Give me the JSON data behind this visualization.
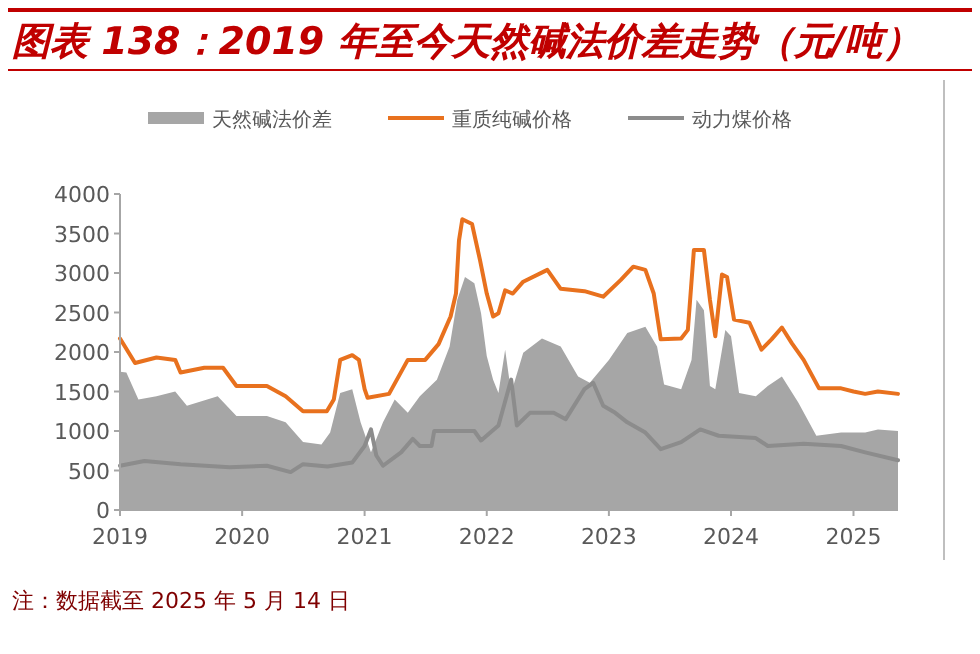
{
  "chart_data": {
    "type": "line",
    "title": "图表 138：2019 年至今天然碱法价差走势（元/吨）",
    "annotations": [
      "注：数据截至 2025 年 5 月 14 日"
    ],
    "legend": "top",
    "xlim": [
      "2019-01-01",
      "2025-05-14"
    ],
    "xticks": [
      {
        "value": "2019-01-01",
        "label": "2019"
      },
      {
        "value": "2020-01-01",
        "label": "2020"
      },
      {
        "value": "2021-01-01",
        "label": "2021"
      },
      {
        "value": "2022-01-01",
        "label": "2022"
      },
      {
        "value": "2023-01-01",
        "label": "2023"
      },
      {
        "value": "2024-01-01",
        "label": "2024"
      },
      {
        "value": "2025-01-01",
        "label": "2025"
      }
    ],
    "ylim": [
      0,
      4000
    ],
    "yticks": [
      0,
      500,
      1000,
      1500,
      2000,
      2500,
      3000,
      3500,
      4000
    ],
    "series": [
      {
        "name": "天然碱法价差",
        "type": "area",
        "color": "#a6a6a6",
        "x": [
          "2019-01-01",
          "2019-01-20",
          "2019-02-25",
          "2019-04-20",
          "2019-06-15",
          "2019-07-20",
          "2019-10-20",
          "2019-12-15",
          "2020-03-15",
          "2020-05-10",
          "2020-07-01",
          "2020-08-25",
          "2020-09-20",
          "2020-10-20",
          "2020-11-25",
          "2020-12-20",
          "2021-01-20",
          "2021-02-25",
          "2021-04-01",
          "2021-05-10",
          "2021-06-15",
          "2021-08-05",
          "2021-09-12",
          "2021-10-05",
          "2021-10-28",
          "2021-11-25",
          "2021-12-15",
          "2022-01-01",
          "2022-01-20",
          "2022-02-05",
          "2022-02-25",
          "2022-03-15",
          "2022-04-20",
          "2022-06-15",
          "2022-08-10",
          "2022-10-01",
          "2022-11-05",
          "2023-01-01",
          "2023-02-25",
          "2023-04-20",
          "2023-05-25",
          "2023-06-15",
          "2023-08-05",
          "2023-09-05",
          "2023-09-20",
          "2023-10-12",
          "2023-10-30",
          "2023-11-15",
          "2023-12-15",
          "2024-01-01",
          "2024-01-25",
          "2024-03-15",
          "2024-04-20",
          "2024-06-01",
          "2024-07-20",
          "2024-09-12",
          "2024-11-25",
          "2025-02-05",
          "2025-03-15",
          "2025-05-14"
        ],
        "values": [
          1750,
          1740,
          1400,
          1440,
          1500,
          1320,
          1440,
          1190,
          1190,
          1110,
          860,
          830,
          980,
          1480,
          1530,
          1110,
          730,
          1110,
          1400,
          1230,
          1440,
          1650,
          2070,
          2660,
          2950,
          2870,
          2490,
          1950,
          1650,
          1480,
          2030,
          1480,
          1990,
          2170,
          2070,
          1690,
          1610,
          1900,
          2240,
          2320,
          2070,
          1590,
          1530,
          1900,
          2660,
          2530,
          1570,
          1530,
          2280,
          2200,
          1480,
          1440,
          1570,
          1690,
          1360,
          940,
          980,
          980,
          1020,
          1000
        ]
      },
      {
        "name": "重质纯碱价格",
        "color": "#e8711e",
        "x": [
          "2019-01-01",
          "2019-02-15",
          "2019-04-20",
          "2019-06-15",
          "2019-07-01",
          "2019-09-10",
          "2019-11-05",
          "2019-12-15",
          "2020-03-15",
          "2020-05-10",
          "2020-07-01",
          "2020-09-10",
          "2020-10-01",
          "2020-10-20",
          "2020-11-25",
          "2020-12-15",
          "2021-01-01",
          "2021-01-10",
          "2021-03-15",
          "2021-05-10",
          "2021-07-01",
          "2021-08-10",
          "2021-09-15",
          "2021-10-01",
          "2021-10-10",
          "2021-10-20",
          "2021-11-18",
          "2021-12-12",
          "2022-01-01",
          "2022-01-20",
          "2022-02-05",
          "2022-02-25",
          "2022-03-20",
          "2022-04-20",
          "2022-07-01",
          "2022-08-10",
          "2022-10-20",
          "2022-12-15",
          "2023-02-05",
          "2023-03-15",
          "2023-04-20",
          "2023-05-15",
          "2023-06-05",
          "2023-08-05",
          "2023-08-25",
          "2023-09-12",
          "2023-10-12",
          "2023-10-30",
          "2023-11-15",
          "2023-12-05",
          "2023-12-20",
          "2024-01-10",
          "2024-02-25",
          "2024-04-01",
          "2024-05-01",
          "2024-06-01",
          "2024-07-01",
          "2024-08-05",
          "2024-09-20",
          "2024-11-25",
          "2025-01-01",
          "2025-02-05",
          "2025-03-15",
          "2025-05-14"
        ],
        "values": [
          2170,
          1860,
          1930,
          1900,
          1740,
          1800,
          1800,
          1570,
          1570,
          1440,
          1250,
          1250,
          1400,
          1900,
          1960,
          1900,
          1530,
          1420,
          1470,
          1900,
          1900,
          2100,
          2450,
          2740,
          3410,
          3680,
          3620,
          3160,
          2740,
          2450,
          2490,
          2780,
          2740,
          2890,
          3040,
          2800,
          2770,
          2700,
          2910,
          3080,
          3040,
          2740,
          2160,
          2170,
          2280,
          3290,
          3290,
          2660,
          2200,
          2980,
          2950,
          2410,
          2370,
          2030,
          2160,
          2310,
          2110,
          1900,
          1540,
          1540,
          1500,
          1470,
          1500,
          1470
        ]
      },
      {
        "name": "动力煤价格",
        "color": "#8c8c8c",
        "x": [
          "2019-01-01",
          "2019-03-15",
          "2019-07-01",
          "2019-11-25",
          "2020-03-15",
          "2020-05-25",
          "2020-07-01",
          "2020-09-12",
          "2020-11-25",
          "2021-01-01",
          "2021-01-20",
          "2021-02-05",
          "2021-02-25",
          "2021-04-20",
          "2021-05-25",
          "2021-06-15",
          "2021-07-20",
          "2021-07-28",
          "2021-11-25",
          "2021-12-15",
          "2022-02-05",
          "2022-03-15",
          "2022-04-01",
          "2022-05-10",
          "2022-07-20",
          "2022-08-25",
          "2022-10-20",
          "2022-11-15",
          "2022-12-15",
          "2023-01-20",
          "2023-02-25",
          "2023-04-20",
          "2023-06-05",
          "2023-08-05",
          "2023-10-01",
          "2023-11-25",
          "2024-03-15",
          "2024-04-20",
          "2024-08-05",
          "2024-11-25",
          "2025-02-05",
          "2025-05-14"
        ],
        "values": [
          560,
          620,
          580,
          540,
          560,
          480,
          580,
          550,
          600,
          810,
          1020,
          690,
          560,
          730,
          900,
          810,
          810,
          1000,
          1000,
          880,
          1070,
          1650,
          1070,
          1230,
          1230,
          1150,
          1530,
          1610,
          1320,
          1230,
          1110,
          980,
          770,
          860,
          1020,
          940,
          910,
          810,
          840,
          810,
          730,
          630
        ]
      }
    ]
  }
}
